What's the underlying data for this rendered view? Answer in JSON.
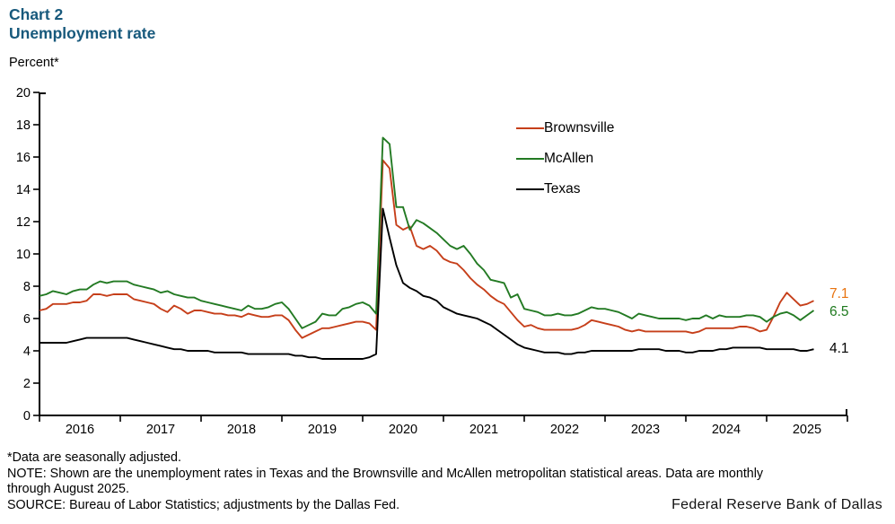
{
  "title": {
    "line1": "Chart 2",
    "line2": "Unemployment rate"
  },
  "unit_label": "Percent*",
  "legend": [
    {
      "label": "Brownsville",
      "color": "#C63F1A"
    },
    {
      "label": "McAllen",
      "color": "#237A23"
    },
    {
      "label": "Texas",
      "color": "#000000"
    }
  ],
  "end_labels": [
    {
      "text": "7.1",
      "color": "#E8730F"
    },
    {
      "text": "6.5",
      "color": "#1E7A1E"
    },
    {
      "text": "4.1",
      "color": "#000000"
    }
  ],
  "footer": {
    "footnote": "*Data are seasonally adjusted.",
    "note_line1": "NOTE: Shown are the unemployment rates in Texas and the Brownsville and McAllen metropolitan statistical areas. Data are monthly",
    "note_line2": "through August 2025.",
    "source": "SOURCE: Bureau of Labor Statistics; adjustments by the Dallas Fed."
  },
  "branding": "Federal Reserve Bank of Dallas",
  "colors": {
    "title": "#17597C",
    "axis": "#000000"
  },
  "chart_data": {
    "type": "line",
    "title": "Unemployment rate",
    "ylabel": "Percent*",
    "ylim": [
      0,
      20
    ],
    "y_ticks": [
      0,
      2,
      4,
      6,
      8,
      10,
      12,
      14,
      16,
      18,
      20
    ],
    "x_year_labels": [
      "2016",
      "2017",
      "2018",
      "2019",
      "2020",
      "2021",
      "2022",
      "2023",
      "2024",
      "2025"
    ],
    "x_start": "2016-01",
    "x_end": "2025-08",
    "grid": false,
    "legend_position": "upper middle",
    "series": [
      {
        "name": "Brownsville",
        "color": "#C63F1A",
        "end_value": 7.1,
        "values": [
          6.5,
          6.6,
          6.9,
          6.9,
          6.9,
          7.0,
          7.0,
          7.1,
          7.5,
          7.5,
          7.4,
          7.5,
          7.5,
          7.5,
          7.2,
          7.1,
          7.0,
          6.9,
          6.6,
          6.4,
          6.8,
          6.6,
          6.3,
          6.5,
          6.5,
          6.4,
          6.3,
          6.3,
          6.2,
          6.2,
          6.1,
          6.3,
          6.2,
          6.1,
          6.1,
          6.2,
          6.2,
          5.9,
          5.3,
          4.8,
          5.0,
          5.2,
          5.4,
          5.4,
          5.5,
          5.6,
          5.7,
          5.8,
          5.8,
          5.7,
          5.3,
          15.8,
          15.3,
          11.8,
          11.5,
          11.7,
          10.5,
          10.3,
          10.5,
          10.2,
          9.7,
          9.5,
          9.4,
          9.0,
          8.5,
          8.1,
          7.8,
          7.4,
          7.1,
          6.9,
          6.4,
          5.9,
          5.5,
          5.6,
          5.4,
          5.3,
          5.3,
          5.3,
          5.3,
          5.3,
          5.4,
          5.6,
          5.9,
          5.8,
          5.7,
          5.6,
          5.5,
          5.3,
          5.2,
          5.3,
          5.2,
          5.2,
          5.2,
          5.2,
          5.2,
          5.2,
          5.2,
          5.1,
          5.2,
          5.4,
          5.4,
          5.4,
          5.4,
          5.4,
          5.5,
          5.5,
          5.4,
          5.2,
          5.3,
          6.1,
          7.0,
          7.6,
          7.2,
          6.8,
          6.9,
          7.1
        ]
      },
      {
        "name": "McAllen",
        "color": "#237A23",
        "end_value": 6.5,
        "values": [
          7.4,
          7.5,
          7.7,
          7.6,
          7.5,
          7.7,
          7.8,
          7.8,
          8.1,
          8.3,
          8.2,
          8.3,
          8.3,
          8.3,
          8.1,
          8.0,
          7.9,
          7.8,
          7.6,
          7.7,
          7.5,
          7.4,
          7.3,
          7.3,
          7.1,
          7.0,
          6.9,
          6.8,
          6.7,
          6.6,
          6.5,
          6.8,
          6.6,
          6.6,
          6.7,
          6.9,
          7.0,
          6.6,
          6.0,
          5.4,
          5.6,
          5.8,
          6.3,
          6.2,
          6.2,
          6.6,
          6.7,
          6.9,
          7.0,
          6.8,
          6.3,
          17.2,
          16.8,
          12.9,
          12.9,
          11.5,
          12.1,
          11.9,
          11.6,
          11.3,
          10.9,
          10.5,
          10.3,
          10.5,
          10.0,
          9.4,
          9.0,
          8.4,
          8.3,
          8.2,
          7.3,
          7.5,
          6.6,
          6.5,
          6.4,
          6.2,
          6.2,
          6.3,
          6.2,
          6.2,
          6.3,
          6.5,
          6.7,
          6.6,
          6.6,
          6.5,
          6.4,
          6.2,
          6.0,
          6.3,
          6.2,
          6.1,
          6.0,
          6.0,
          6.0,
          6.0,
          5.9,
          6.0,
          6.0,
          6.2,
          6.0,
          6.2,
          6.1,
          6.1,
          6.1,
          6.2,
          6.2,
          6.1,
          5.8,
          6.1,
          6.3,
          6.4,
          6.2,
          5.9,
          6.2,
          6.5
        ]
      },
      {
        "name": "Texas",
        "color": "#000000",
        "end_value": 4.1,
        "values": [
          4.5,
          4.5,
          4.5,
          4.5,
          4.5,
          4.6,
          4.7,
          4.8,
          4.8,
          4.8,
          4.8,
          4.8,
          4.8,
          4.8,
          4.7,
          4.6,
          4.5,
          4.4,
          4.3,
          4.2,
          4.1,
          4.1,
          4.0,
          4.0,
          4.0,
          4.0,
          3.9,
          3.9,
          3.9,
          3.9,
          3.9,
          3.8,
          3.8,
          3.8,
          3.8,
          3.8,
          3.8,
          3.8,
          3.7,
          3.7,
          3.6,
          3.6,
          3.5,
          3.5,
          3.5,
          3.5,
          3.5,
          3.5,
          3.5,
          3.6,
          3.8,
          12.8,
          11.0,
          9.3,
          8.2,
          7.9,
          7.7,
          7.4,
          7.3,
          7.1,
          6.7,
          6.5,
          6.3,
          6.2,
          6.1,
          6.0,
          5.8,
          5.6,
          5.3,
          5.0,
          4.7,
          4.4,
          4.2,
          4.1,
          4.0,
          3.9,
          3.9,
          3.9,
          3.8,
          3.8,
          3.9,
          3.9,
          4.0,
          4.0,
          4.0,
          4.0,
          4.0,
          4.0,
          4.0,
          4.1,
          4.1,
          4.1,
          4.1,
          4.0,
          4.0,
          4.0,
          3.9,
          3.9,
          4.0,
          4.0,
          4.0,
          4.1,
          4.1,
          4.2,
          4.2,
          4.2,
          4.2,
          4.2,
          4.1,
          4.1,
          4.1,
          4.1,
          4.1,
          4.0,
          4.0,
          4.1
        ]
      }
    ]
  }
}
